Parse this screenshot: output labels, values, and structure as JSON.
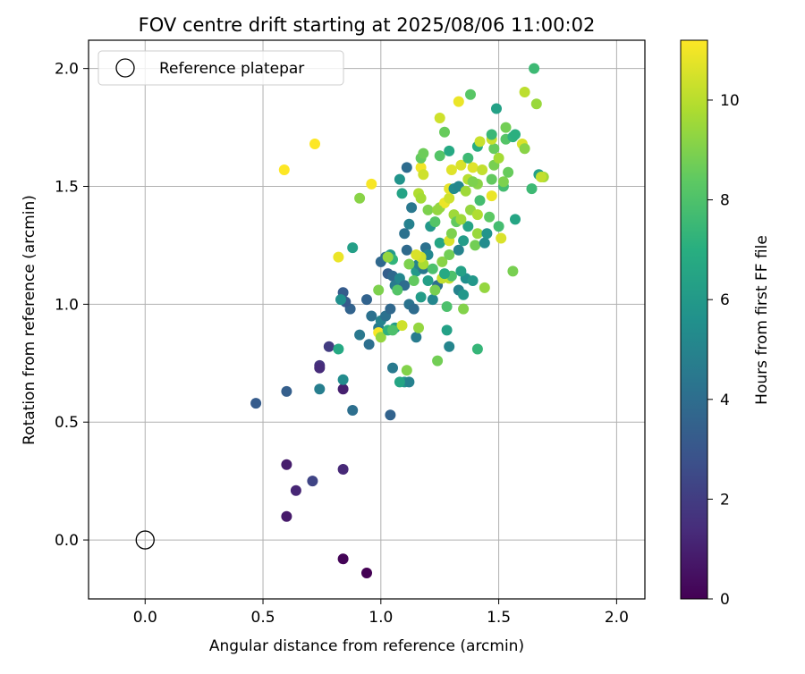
{
  "chart_data": {
    "type": "scatter",
    "title": "FOV centre drift starting at 2025/08/06 11:00:02",
    "xlabel": "Angular distance from reference (arcmin)",
    "ylabel": "Rotation from reference (arcmin)",
    "xlim": [
      -0.24,
      2.12
    ],
    "ylim": [
      -0.25,
      2.12
    ],
    "x_ticks": [
      0.0,
      0.5,
      1.0,
      1.5,
      2.0
    ],
    "x_tick_labels": [
      "0.0",
      "0.5",
      "1.0",
      "1.5",
      "2.0"
    ],
    "y_ticks": [
      0.0,
      0.5,
      1.0,
      1.5,
      2.0
    ],
    "y_tick_labels": [
      "0.0",
      "0.5",
      "1.0",
      "1.5",
      "2.0"
    ],
    "grid": true,
    "legend": {
      "placement": "top-left",
      "entries": [
        "Reference platepar"
      ]
    },
    "reference_point": {
      "name": "Reference platepar",
      "x": 0.0,
      "y": 0.0
    },
    "colorbar": {
      "label": "Hours from first FF file",
      "colormap": "viridis",
      "range": [
        0,
        11.2
      ],
      "ticks": [
        0,
        2,
        4,
        6,
        8,
        10
      ],
      "tick_labels": [
        "0",
        "2",
        "4",
        "6",
        "8",
        "10"
      ]
    },
    "points_format": [
      "x",
      "y",
      "hours"
    ],
    "points": [
      [
        0.94,
        -0.14,
        0.0
      ],
      [
        0.84,
        -0.08,
        0.1
      ],
      [
        0.6,
        0.1,
        0.8
      ],
      [
        0.64,
        0.21,
        1.2
      ],
      [
        0.6,
        0.32,
        0.9
      ],
      [
        0.84,
        0.3,
        1.3
      ],
      [
        0.71,
        0.25,
        2.3
      ],
      [
        0.84,
        0.64,
        1.0
      ],
      [
        0.74,
        0.74,
        1.7
      ],
      [
        0.74,
        0.73,
        1.4
      ],
      [
        0.78,
        0.82,
        2.0
      ],
      [
        0.47,
        0.58,
        3.3
      ],
      [
        0.6,
        0.63,
        3.4
      ],
      [
        0.88,
        0.55,
        4.1
      ],
      [
        0.74,
        0.64,
        4.8
      ],
      [
        0.84,
        0.68,
        5.4
      ],
      [
        1.04,
        0.53,
        3.6
      ],
      [
        1.05,
        0.73,
        4.6
      ],
      [
        0.84,
        1.05,
        3.3
      ],
      [
        0.87,
        0.98,
        3.6
      ],
      [
        0.85,
        1.01,
        3.2
      ],
      [
        0.83,
        1.02,
        5.6
      ],
      [
        0.82,
        0.81,
        6.8
      ],
      [
        0.91,
        0.87,
        4.5
      ],
      [
        0.95,
        0.83,
        4.1
      ],
      [
        0.94,
        1.02,
        3.6
      ],
      [
        0.96,
        0.95,
        4.2
      ],
      [
        0.99,
        0.9,
        4.6
      ],
      [
        1.0,
        0.93,
        5.0
      ],
      [
        1.02,
        0.95,
        4.2
      ],
      [
        1.04,
        0.98,
        3.8
      ],
      [
        1.06,
        0.9,
        6.2
      ],
      [
        1.03,
        1.13,
        3.4
      ],
      [
        1.05,
        1.12,
        3.8
      ],
      [
        1.06,
        1.08,
        4.6
      ],
      [
        1.08,
        1.11,
        5.2
      ],
      [
        1.1,
        1.08,
        4.0
      ],
      [
        1.0,
        1.18,
        3.8
      ],
      [
        1.02,
        1.2,
        4.1
      ],
      [
        1.04,
        1.21,
        6.0
      ],
      [
        1.05,
        1.19,
        7.3
      ],
      [
        1.03,
        1.2,
        9.4
      ],
      [
        1.11,
        1.23,
        3.9
      ],
      [
        1.12,
        1.34,
        4.9
      ],
      [
        1.13,
        1.41,
        4.5
      ],
      [
        1.1,
        1.3,
        4.2
      ],
      [
        1.09,
        1.47,
        6.5
      ],
      [
        1.11,
        1.58,
        4.0
      ],
      [
        1.08,
        1.53,
        5.8
      ],
      [
        1.12,
        1.0,
        4.3
      ],
      [
        1.14,
        0.98,
        4.0
      ],
      [
        1.15,
        0.86,
        4.7
      ],
      [
        1.1,
        0.67,
        5.8
      ],
      [
        1.12,
        0.67,
        4.9
      ],
      [
        1.08,
        0.67,
        6.6
      ],
      [
        1.11,
        0.72,
        9.1
      ],
      [
        1.09,
        0.91,
        10.4
      ],
      [
        1.16,
        0.9,
        9.4
      ],
      [
        1.17,
        1.03,
        6.2
      ],
      [
        1.15,
        1.14,
        6.0
      ],
      [
        1.16,
        1.17,
        5.0
      ],
      [
        1.18,
        1.15,
        4.5
      ],
      [
        1.19,
        1.24,
        4.2
      ],
      [
        1.2,
        1.21,
        5.2
      ],
      [
        1.18,
        1.17,
        9.8
      ],
      [
        1.17,
        1.2,
        10.4
      ],
      [
        1.15,
        1.21,
        10.6
      ],
      [
        1.2,
        1.1,
        6.3
      ],
      [
        1.22,
        1.02,
        5.2
      ],
      [
        1.24,
        1.08,
        4.1
      ],
      [
        1.22,
        1.15,
        8.0
      ],
      [
        1.23,
        1.06,
        8.9
      ],
      [
        1.24,
        0.76,
        8.8
      ],
      [
        1.25,
        1.26,
        6.6
      ],
      [
        1.26,
        1.18,
        9.2
      ],
      [
        1.25,
        1.41,
        9.4
      ],
      [
        1.27,
        1.43,
        10.9
      ],
      [
        1.16,
        1.47,
        9.9
      ],
      [
        1.17,
        1.45,
        9.7
      ],
      [
        1.17,
        1.58,
        11.0
      ],
      [
        1.18,
        1.55,
        10.4
      ],
      [
        1.17,
        1.62,
        8.5
      ],
      [
        1.18,
        1.64,
        8.7
      ],
      [
        1.2,
        1.4,
        9.0
      ],
      [
        1.24,
        1.4,
        9.4
      ],
      [
        1.25,
        1.63,
        8.2
      ],
      [
        1.25,
        1.79,
        10.4
      ],
      [
        1.27,
        1.73,
        8.6
      ],
      [
        1.29,
        0.82,
        5.1
      ],
      [
        1.28,
        0.89,
        6.4
      ],
      [
        1.28,
        0.99,
        8.0
      ],
      [
        1.29,
        1.11,
        10.2
      ],
      [
        1.3,
        1.12,
        8.0
      ],
      [
        1.29,
        1.21,
        8.8
      ],
      [
        1.29,
        1.27,
        10.6
      ],
      [
        1.3,
        1.3,
        9.0
      ],
      [
        1.31,
        1.38,
        9.6
      ],
      [
        1.29,
        1.45,
        10.4
      ],
      [
        1.29,
        1.49,
        10.8
      ],
      [
        1.3,
        1.57,
        10.7
      ],
      [
        1.29,
        1.65,
        6.8
      ],
      [
        1.31,
        1.49,
        5.4
      ],
      [
        1.33,
        1.5,
        5.2
      ],
      [
        1.34,
        1.59,
        10.6
      ],
      [
        1.33,
        1.86,
        10.9
      ],
      [
        1.33,
        1.06,
        5.0
      ],
      [
        1.35,
        0.98,
        9.1
      ],
      [
        1.35,
        1.04,
        6.0
      ],
      [
        1.36,
        1.11,
        5.6
      ],
      [
        1.34,
        1.14,
        6.4
      ],
      [
        1.33,
        1.23,
        5.0
      ],
      [
        1.35,
        1.27,
        6.2
      ],
      [
        1.37,
        1.33,
        6.5
      ],
      [
        1.38,
        1.4,
        9.4
      ],
      [
        1.36,
        1.48,
        9.6
      ],
      [
        1.37,
        1.53,
        10.0
      ],
      [
        1.39,
        1.58,
        10.7
      ],
      [
        1.37,
        1.62,
        7.6
      ],
      [
        1.38,
        1.89,
        8.3
      ],
      [
        1.39,
        1.1,
        6.0
      ],
      [
        1.4,
        1.25,
        8.8
      ],
      [
        1.41,
        1.3,
        9.5
      ],
      [
        1.41,
        1.38,
        9.9
      ],
      [
        1.42,
        1.44,
        7.8
      ],
      [
        1.41,
        1.51,
        9.2
      ],
      [
        1.41,
        1.67,
        7.0
      ],
      [
        1.42,
        1.69,
        10.3
      ],
      [
        1.43,
        1.57,
        10.2
      ],
      [
        1.44,
        1.26,
        5.4
      ],
      [
        1.45,
        1.3,
        5.8
      ],
      [
        1.44,
        1.07,
        9.4
      ],
      [
        1.41,
        0.81,
        7.4
      ],
      [
        1.46,
        1.37,
        8.4
      ],
      [
        1.47,
        1.46,
        10.9
      ],
      [
        1.47,
        1.53,
        8.5
      ],
      [
        1.48,
        1.59,
        8.9
      ],
      [
        1.48,
        1.66,
        8.6
      ],
      [
        1.47,
        1.7,
        10.3
      ],
      [
        1.47,
        1.72,
        7.5
      ],
      [
        1.49,
        1.83,
        6.4
      ],
      [
        1.5,
        1.33,
        7.8
      ],
      [
        1.51,
        1.28,
        10.6
      ],
      [
        1.5,
        1.62,
        9.7
      ],
      [
        1.52,
        1.5,
        7.8
      ],
      [
        1.52,
        1.52,
        9.0
      ],
      [
        1.53,
        1.7,
        8.2
      ],
      [
        1.53,
        1.75,
        8.8
      ],
      [
        1.54,
        1.56,
        8.6
      ],
      [
        1.56,
        1.14,
        8.9
      ],
      [
        1.56,
        1.71,
        7.2
      ],
      [
        1.57,
        1.36,
        6.6
      ],
      [
        1.57,
        1.72,
        7.1
      ],
      [
        1.6,
        1.68,
        10.6
      ],
      [
        1.61,
        1.66,
        9.2
      ],
      [
        1.61,
        1.9,
        10.1
      ],
      [
        1.64,
        1.49,
        7.6
      ],
      [
        1.65,
        2.0,
        7.6
      ],
      [
        1.66,
        1.85,
        9.5
      ],
      [
        1.67,
        1.55,
        6.4
      ],
      [
        1.69,
        1.54,
        9.6
      ],
      [
        1.68,
        1.54,
        10.2
      ],
      [
        0.82,
        1.2,
        10.9
      ],
      [
        0.88,
        1.24,
        6.3
      ],
      [
        0.91,
        1.45,
        9.2
      ],
      [
        0.96,
        1.51,
        11.1
      ],
      [
        0.72,
        1.68,
        11.2
      ],
      [
        0.59,
        1.57,
        11.2
      ],
      [
        0.99,
        0.88,
        11.1
      ],
      [
        0.99,
        1.06,
        9.0
      ],
      [
        1.0,
        0.86,
        9.4
      ],
      [
        1.03,
        0.89,
        7.2
      ],
      [
        1.05,
        0.89,
        8.0
      ],
      [
        1.07,
        1.06,
        8.2
      ],
      [
        1.12,
        1.17,
        9.0
      ],
      [
        1.14,
        1.1,
        8.5
      ],
      [
        1.21,
        1.33,
        6.0
      ],
      [
        1.23,
        1.35,
        8.2
      ],
      [
        1.32,
        1.35,
        8.5
      ],
      [
        1.34,
        1.36,
        9.6
      ],
      [
        1.26,
        1.11,
        10.2
      ],
      [
        1.27,
        1.13,
        6.8
      ],
      [
        1.39,
        1.52,
        9.0
      ]
    ]
  }
}
